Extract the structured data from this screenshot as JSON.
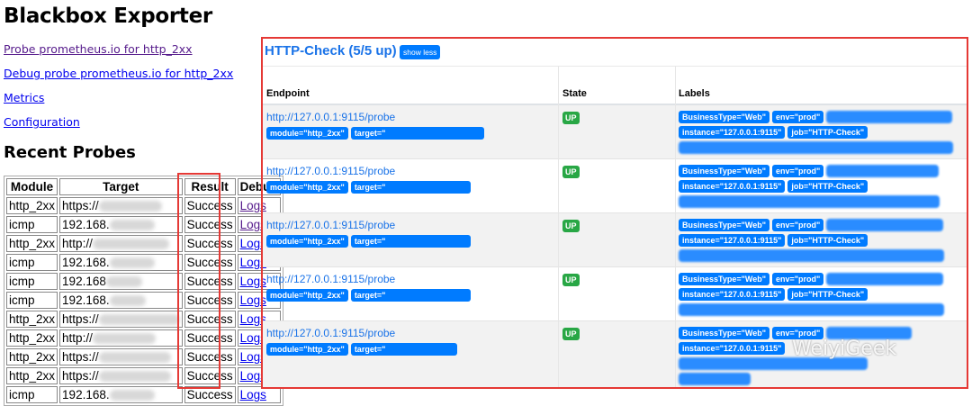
{
  "left": {
    "title": "Blackbox Exporter",
    "links": [
      "Probe prometheus.io for http_2xx",
      "Debug probe prometheus.io for http_2xx",
      "Metrics",
      "Configuration"
    ],
    "recent_title": "Recent Probes",
    "columns": [
      "Module",
      "Target",
      "Result",
      "Debug"
    ],
    "rows": [
      {
        "module": "http_2xx",
        "target": "https://",
        "result": "Success",
        "debug": "Logs"
      },
      {
        "module": "icmp",
        "target": "192.168.",
        "result": "Success",
        "debug": "Logs"
      },
      {
        "module": "http_2xx",
        "target": "http://",
        "result": "Success",
        "debug": "Logs"
      },
      {
        "module": "icmp",
        "target": "192.168.",
        "result": "Success",
        "debug": "Logs"
      },
      {
        "module": "icmp",
        "target": "192.168",
        "result": "Success",
        "debug": "Logs"
      },
      {
        "module": "icmp",
        "target": "192.168.",
        "result": "Success",
        "debug": "Logs"
      },
      {
        "module": "http_2xx",
        "target": "https://",
        "result": "Success",
        "debug": "Logs"
      },
      {
        "module": "http_2xx",
        "target": "http://",
        "result": "Success",
        "debug": "Logs"
      },
      {
        "module": "http_2xx",
        "target": "https://",
        "result": "Success",
        "debug": "Logs"
      },
      {
        "module": "http_2xx",
        "target": "https://",
        "result": "Success",
        "debug": "Logs"
      },
      {
        "module": "icmp",
        "target": "192.168.",
        "result": "Success",
        "debug": "Logs"
      }
    ]
  },
  "right": {
    "title": "HTTP-Check (5/5 up)",
    "show_less": "show less",
    "columns": [
      "Endpoint",
      "State",
      "Labels"
    ],
    "rows": [
      {
        "endpoint": "http://127.0.0.1:9115/probe",
        "module": "module=\"http_2xx\"",
        "target": "target=\"",
        "state": "UP",
        "business": "BusinessType=\"Web\"",
        "env": "env=\"prod\"",
        "instance": "instance=\"127.0.0.1:9115\"",
        "job": "job=\"HTTP-Check\""
      },
      {
        "endpoint": "http://127.0.0.1:9115/probe",
        "module": "module=\"http_2xx\"",
        "target": "target=\"",
        "state": "UP",
        "business": "BusinessType=\"Web\"",
        "env": "env=\"prod\"",
        "instance": "instance=\"127.0.0.1:9115\"",
        "job": "job=\"HTTP-Check\""
      },
      {
        "endpoint": "http://127.0.0.1:9115/probe",
        "module": "module=\"http_2xx\"",
        "target": "target=\"",
        "state": "UP",
        "business": "BusinessType=\"Web\"",
        "env": "env=\"prod\"",
        "instance": "instance=\"127.0.0.1:9115\"",
        "job": "job=\"HTTP-Check\""
      },
      {
        "endpoint": "http://127.0.0.1:9115/probe",
        "module": "module=\"http_2xx\"",
        "target": "target=\"",
        "state": "UP",
        "business": "BusinessType=\"Web\"",
        "env": "env=\"prod\"",
        "instance": "instance=\"127.0.0.1:9115\"",
        "job": "job=\"HTTP-Check\""
      },
      {
        "endpoint": "http://127.0.0.1:9115/probe",
        "module": "module=\"http_2xx\"",
        "target": "target=\"",
        "state": "UP",
        "business": "BusinessType=\"Web\"",
        "env": "env=\"prod\"",
        "instance": "instance=\"127.0.0.1:9115\"",
        "job": ""
      }
    ]
  },
  "colors": {
    "highlight": "#e53935",
    "badge": "#007bff",
    "up": "#28a745",
    "link": "#1a73e8"
  },
  "watermark": "WeiyiGeek"
}
